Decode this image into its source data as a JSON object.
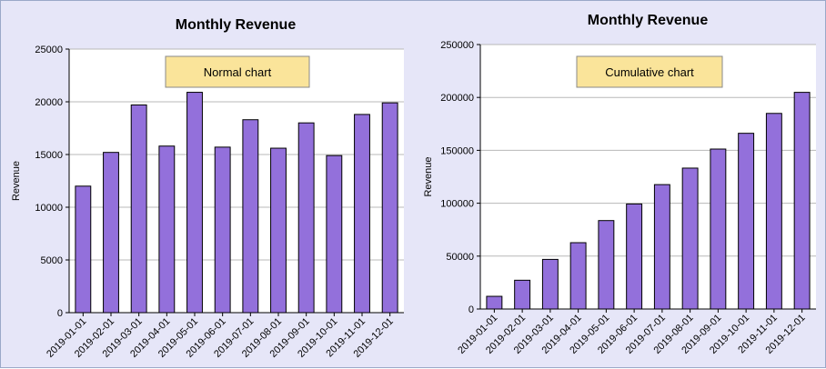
{
  "chart_data": [
    {
      "type": "bar",
      "title": "Monthly Revenue",
      "ylabel": "Revenue",
      "xlabel": "",
      "annotation": "Normal chart",
      "categories": [
        "2019-01-01",
        "2019-02-01",
        "2019-03-01",
        "2019-04-01",
        "2019-05-01",
        "2019-06-01",
        "2019-07-01",
        "2019-08-01",
        "2019-09-01",
        "2019-10-01",
        "2019-11-01",
        "2019-12-01"
      ],
      "values": [
        12000,
        15200,
        19700,
        15800,
        20900,
        15700,
        18300,
        15600,
        18000,
        14900,
        18800,
        19900
      ],
      "ylim": [
        0,
        25000
      ],
      "yticks": [
        0,
        5000,
        10000,
        15000,
        20000,
        25000
      ],
      "grid": true,
      "bar_color": "#9370db"
    },
    {
      "type": "bar",
      "title": "Monthly Revenue",
      "ylabel": "Revenue",
      "xlabel": "",
      "annotation": "Cumulative chart",
      "categories": [
        "2019-01-01",
        "2019-02-01",
        "2019-03-01",
        "2019-04-01",
        "2019-05-01",
        "2019-06-01",
        "2019-07-01",
        "2019-08-01",
        "2019-09-01",
        "2019-10-01",
        "2019-11-01",
        "2019-12-01"
      ],
      "values": [
        12000,
        27200,
        46900,
        62700,
        83600,
        99300,
        117600,
        133200,
        151200,
        166100,
        184900,
        204800
      ],
      "ylim": [
        0,
        250000
      ],
      "yticks": [
        0,
        50000,
        100000,
        150000,
        200000,
        250000
      ],
      "grid": true,
      "bar_color": "#9370db"
    }
  ]
}
